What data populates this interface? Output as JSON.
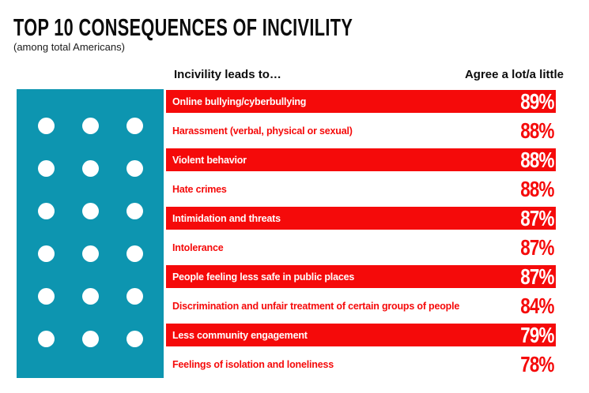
{
  "header": {
    "title": "TOP 10 CONSEQUENCES OF INCIVILITY",
    "subtitle": "(among total Americans)",
    "col_left": "Incivility leads to…",
    "col_right": "Agree a lot/a little"
  },
  "colors": {
    "bar_red": "#f50a0a",
    "teal_block": "#0d95b0",
    "text_black": "#0c0c0c",
    "white": "#ffffff"
  },
  "rows": [
    {
      "label": "Online bullying/cyberbullying",
      "value": "89%",
      "highlighted": true
    },
    {
      "label": "Harassment (verbal, physical or sexual)",
      "value": "88%",
      "highlighted": false
    },
    {
      "label": "Violent behavior",
      "value": "88%",
      "highlighted": true
    },
    {
      "label": "Hate crimes",
      "value": "88%",
      "highlighted": false
    },
    {
      "label": "Intimidation and threats",
      "value": "87%",
      "highlighted": true
    },
    {
      "label": "Intolerance",
      "value": "87%",
      "highlighted": false
    },
    {
      "label": "People feeling less safe in public places",
      "value": "87%",
      "highlighted": true
    },
    {
      "label": "Discrimination and unfair treatment of certain groups of people",
      "value": "84%",
      "highlighted": false
    },
    {
      "label": "Less community engagement",
      "value": "79%",
      "highlighted": true
    },
    {
      "label": "Feelings of isolation and loneliness",
      "value": "78%",
      "highlighted": false
    }
  ],
  "chart_data": {
    "type": "bar",
    "title": "TOP 10 CONSEQUENCES OF INCIVILITY",
    "subtitle": "(among total Americans)",
    "category_header": "Incivility leads to…",
    "value_header": "Agree a lot/a little",
    "categories": [
      "Online bullying/cyberbullying",
      "Harassment (verbal, physical or sexual)",
      "Violent behavior",
      "Hate crimes",
      "Intimidation and threats",
      "Intolerance",
      "People feeling less safe in public places",
      "Discrimination and unfair treatment of certain groups of people",
      "Less community engagement",
      "Feelings of isolation and loneliness"
    ],
    "values": [
      89,
      88,
      88,
      88,
      87,
      87,
      87,
      84,
      79,
      78
    ],
    "unit": "%",
    "highlighted_rows": [
      0,
      2,
      4,
      6,
      8
    ],
    "bar_color": "#f50a0a",
    "legend_position": "none",
    "grid": false
  }
}
